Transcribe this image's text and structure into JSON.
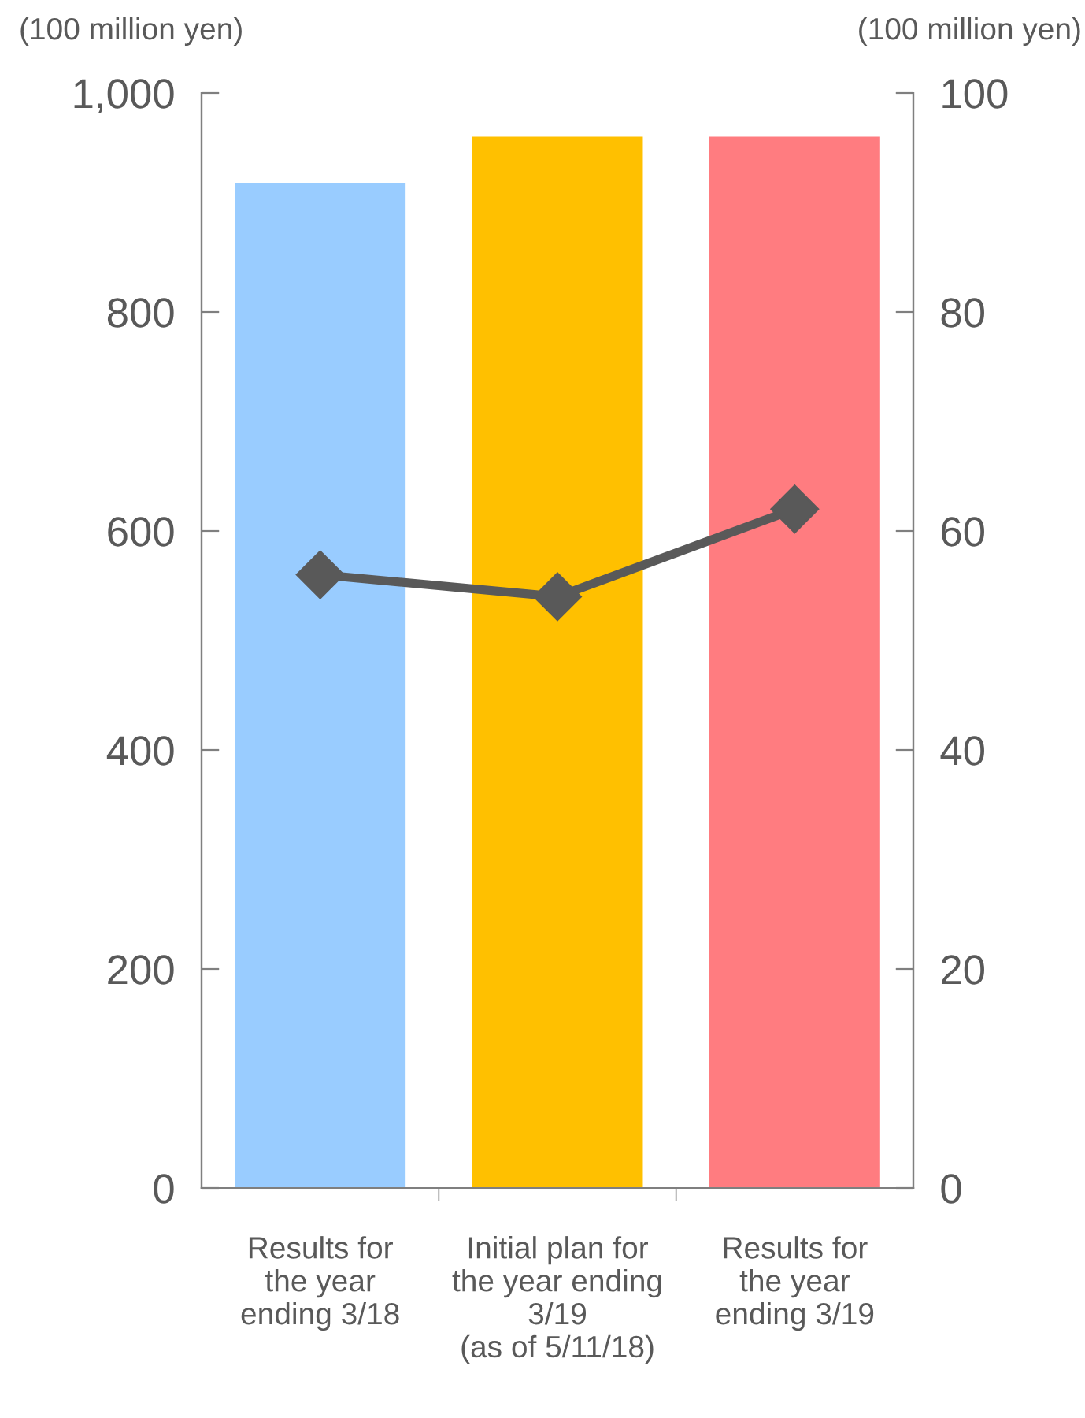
{
  "chart_data": {
    "type": "bar",
    "ylabel": "(100 million yen)",
    "y2label": "(100 million yen)",
    "categories": [
      "Results for\nthe year\nending 3/18",
      "Initial plan for\nthe year ending\n3/19\n(as of 5/11/18)",
      "Results for\nthe year\nending 3/19"
    ],
    "series": [
      {
        "colors": [
          "#99ccff",
          "#ffc000",
          "#ff7c80"
        ],
        "values": [
          918,
          960,
          960
        ]
      },
      {
        "type": "line",
        "axis": "y2",
        "color": "#595959",
        "values": [
          56,
          54,
          62
        ],
        "marker": "diamond",
        "line_style": "solid"
      }
    ],
    "ylim": [
      0,
      1000
    ],
    "yticks": [
      0,
      200,
      400,
      600,
      {
        "value": 800,
        "label": "800"
      },
      {
        "value": 1000,
        "label": "1,000"
      }
    ],
    "y2lim": [
      0,
      100
    ],
    "y2ticks": [
      0,
      20,
      40,
      60,
      80,
      100
    ],
    "grid": false,
    "legend": false
  }
}
